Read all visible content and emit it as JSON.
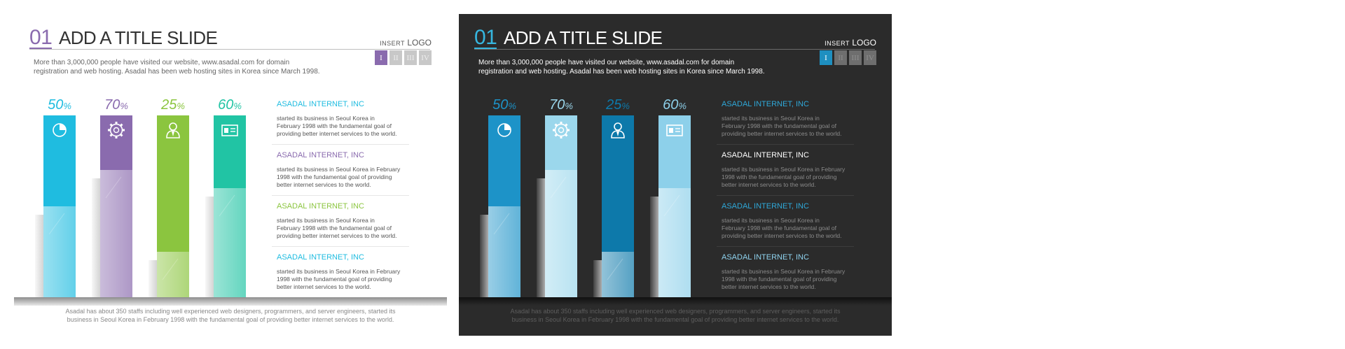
{
  "slide": {
    "number": "01",
    "title": "ADD A TITLE SLIDE",
    "logo_small": "INSERT",
    "logo_big": "LOGO",
    "roman": [
      "I",
      "II",
      "III",
      "IV"
    ],
    "intro_line1": "More than 3,000,000 people  have visited our website, www.asadal.com  for domain",
    "intro_line2": "registration and web hosting.  Asadal has been  web hosting sites in Korea since March 1998.",
    "items": [
      {
        "title": "ASADAL INTERNET, INC",
        "line1": "started its business in Seoul Korea  in",
        "line2": "February 1998 with the fundamental goal of",
        "line3": "providing better internet services to the world."
      },
      {
        "title": "ASADAL INTERNET, INC",
        "line1": "started its business in Seoul Korea  in February",
        "line2": "1998 with the fundamental goal of providing",
        "line3": "better internet services to the world."
      },
      {
        "title": "ASADAL INTERNET, INC",
        "line1": "started its business in Seoul Korea  in",
        "line2": "February 1998 with the fundamental goal of",
        "line3": "providing better internet services to the world."
      },
      {
        "title": "ASADAL INTERNET, INC",
        "line1": "started its business in Seoul Korea  in February",
        "line2": "1998 with the fundamental goal of providing",
        "line3": "better internet services to the world."
      }
    ],
    "footer_line1": "Asadal has about 350 staffs including well experienced web designers, programmers, and server engineers, started its",
    "footer_line2": "business in Seoul Korea  in February 1998 with the fundamental goal of providing better internet services to the world."
  },
  "chart_data": {
    "type": "bar",
    "categories": [
      "pie-chart",
      "gear",
      "person",
      "id-card"
    ],
    "values": [
      50,
      70,
      25,
      60
    ],
    "value_labels": [
      "50%",
      "70%",
      "25%",
      "60%"
    ],
    "ylim": [
      0,
      100
    ]
  },
  "themes": {
    "light": {
      "background": "#ffffff",
      "accent": "#8a6bae",
      "bar_colors": [
        "#1fbce0",
        "#8a6bae",
        "#8bc53f",
        "#21c4a4"
      ],
      "title_colors": [
        "#1fbce0",
        "#8a6bae",
        "#8bc53f",
        "#1fbce0"
      ]
    },
    "dark": {
      "background": "#2b2b2b",
      "accent": "#36b6df",
      "bar_colors": [
        "#1d93c8",
        "#9bd7ec",
        "#0d79aa",
        "#8dd0ea"
      ],
      "title_colors": [
        "#2fa8d8",
        "#ffffff",
        "#2fa8d8",
        "#8fd3ef"
      ]
    }
  }
}
